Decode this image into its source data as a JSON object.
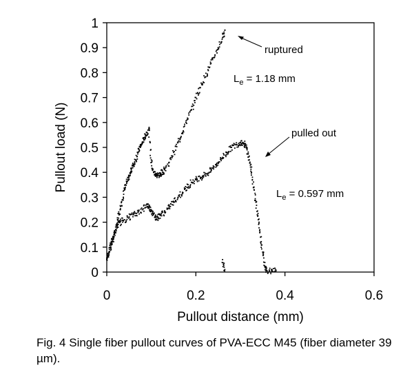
{
  "chart_data": {
    "type": "scatter",
    "title": "",
    "xlabel": "Pullout distance (mm)",
    "ylabel": "Pullout load (N)",
    "xlim": [
      0,
      0.6
    ],
    "ylim": [
      0,
      1
    ],
    "xticks": [
      "0",
      "0.2",
      "0.4",
      "0.6"
    ],
    "xtick_values": [
      0,
      0.2,
      0.4,
      0.6
    ],
    "yticks": [
      "0",
      "0.1",
      "0.2",
      "0.3",
      "0.4",
      "0.5",
      "0.6",
      "0.7",
      "0.8",
      "0.9",
      "1"
    ],
    "ytick_values": [
      0,
      0.1,
      0.2,
      0.3,
      0.4,
      0.5,
      0.6,
      0.7,
      0.8,
      0.9,
      1.0
    ],
    "grid": false,
    "legend": "none",
    "series": [
      {
        "name": "Le = 1.18 mm (ruptured)",
        "x": [
          0.0,
          0.005,
          0.01,
          0.015,
          0.02,
          0.025,
          0.03,
          0.035,
          0.04,
          0.045,
          0.05,
          0.055,
          0.06,
          0.065,
          0.07,
          0.075,
          0.08,
          0.085,
          0.09,
          0.095,
          0.1,
          0.105,
          0.11,
          0.115,
          0.12,
          0.125,
          0.13,
          0.14,
          0.15,
          0.16,
          0.17,
          0.18,
          0.19,
          0.2,
          0.21,
          0.22,
          0.23,
          0.24,
          0.25,
          0.26,
          0.265
        ],
        "y": [
          0.05,
          0.08,
          0.11,
          0.14,
          0.17,
          0.21,
          0.25,
          0.29,
          0.33,
          0.36,
          0.38,
          0.41,
          0.43,
          0.45,
          0.48,
          0.5,
          0.52,
          0.54,
          0.56,
          0.57,
          0.45,
          0.4,
          0.39,
          0.39,
          0.39,
          0.4,
          0.41,
          0.44,
          0.48,
          0.52,
          0.56,
          0.61,
          0.65,
          0.7,
          0.74,
          0.78,
          0.82,
          0.86,
          0.9,
          0.94,
          0.97
        ]
      },
      {
        "name": "Le = 0.597 mm (pulled out)",
        "x": [
          0.0,
          0.005,
          0.01,
          0.015,
          0.02,
          0.025,
          0.03,
          0.04,
          0.05,
          0.06,
          0.07,
          0.08,
          0.09,
          0.095,
          0.1,
          0.105,
          0.11,
          0.115,
          0.12,
          0.13,
          0.14,
          0.15,
          0.16,
          0.17,
          0.18,
          0.19,
          0.2,
          0.21,
          0.22,
          0.23,
          0.24,
          0.25,
          0.26,
          0.27,
          0.28,
          0.29,
          0.3,
          0.305,
          0.31,
          0.315,
          0.32,
          0.325,
          0.33,
          0.335,
          0.34,
          0.345,
          0.35,
          0.355,
          0.36,
          0.37,
          0.38,
          0.26,
          0.265
        ],
        "y": [
          0.05,
          0.08,
          0.11,
          0.14,
          0.17,
          0.19,
          0.2,
          0.21,
          0.22,
          0.23,
          0.24,
          0.25,
          0.27,
          0.26,
          0.25,
          0.23,
          0.22,
          0.22,
          0.23,
          0.24,
          0.26,
          0.28,
          0.3,
          0.32,
          0.34,
          0.36,
          0.37,
          0.38,
          0.39,
          0.4,
          0.42,
          0.44,
          0.46,
          0.48,
          0.5,
          0.51,
          0.52,
          0.52,
          0.51,
          0.49,
          0.45,
          0.4,
          0.34,
          0.28,
          0.21,
          0.14,
          0.08,
          0.02,
          0.005,
          0.005,
          0.005,
          0.05,
          0.01
        ]
      }
    ],
    "annotations": [
      {
        "text": "ruptured",
        "arrow_to": [
          0.27,
          0.96
        ]
      },
      {
        "text_main": "L",
        "text_sub": "e",
        "text_rest": " = 1.18 mm"
      },
      {
        "text": "pulled out",
        "arrow_to": [
          0.345,
          0.47
        ]
      },
      {
        "text_main": "L",
        "text_sub": "e",
        "text_rest": " = 0.597 mm"
      }
    ]
  },
  "caption": {
    "text": "Fig. 4 Single fiber pullout curves of PVA-ECC M45 (fiber diameter 39 µm)."
  }
}
